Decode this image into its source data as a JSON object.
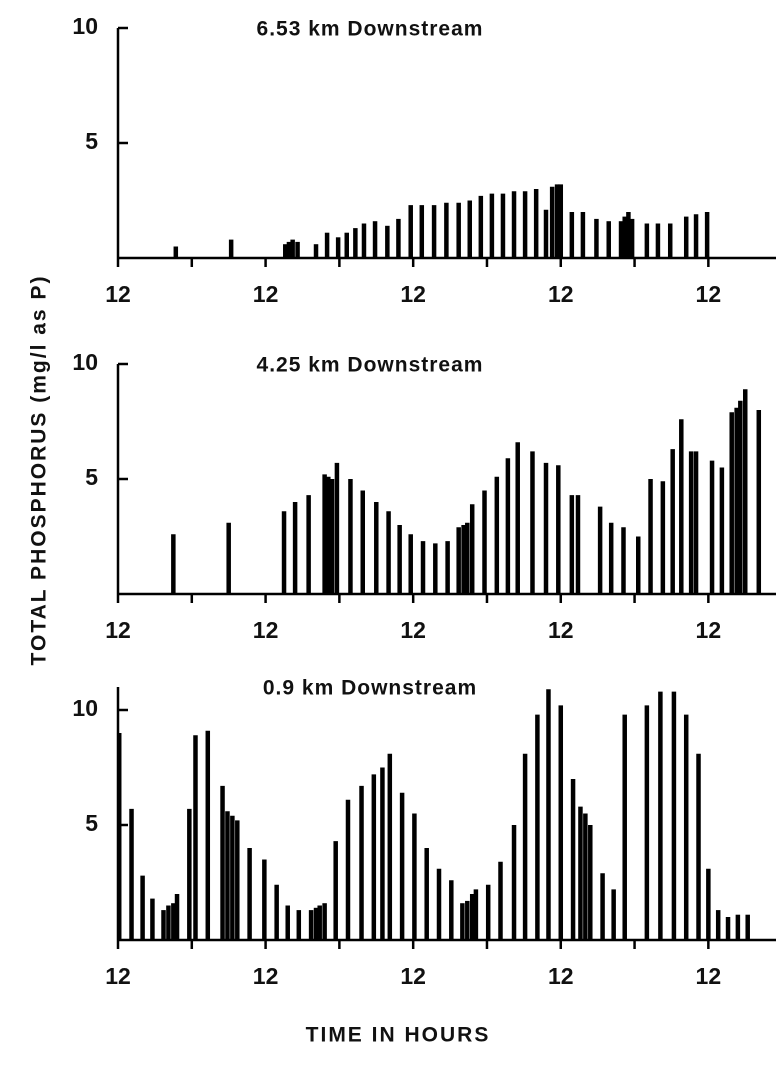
{
  "ylabel": "TOTAL PHOSPHORUS (mg/l as P)",
  "xlabel": "TIME IN HOURS",
  "chart_data": [
    {
      "type": "bar",
      "title": "6.53 km Downstream",
      "color": "#000000",
      "x": [
        4.7,
        9.2,
        13.6,
        13.9,
        14.2,
        14.6,
        16.1,
        17.0,
        17.9,
        18.6,
        19.3,
        20.0,
        20.9,
        21.9,
        22.8,
        23.8,
        24.7,
        25.7,
        26.7,
        27.7,
        28.6,
        29.5,
        30.4,
        31.3,
        32.2,
        33.1,
        34.0,
        34.8,
        35.3,
        35.7,
        36.0,
        36.9,
        37.8,
        38.9,
        39.9,
        40.9,
        41.2,
        41.5,
        41.8,
        43.0,
        43.9,
        44.9,
        46.2,
        47.0,
        47.9
      ],
      "values": [
        0.5,
        0.8,
        0.6,
        0.7,
        0.8,
        0.7,
        0.6,
        1.1,
        0.9,
        1.1,
        1.3,
        1.5,
        1.6,
        1.4,
        1.7,
        2.3,
        2.3,
        2.3,
        2.4,
        2.4,
        2.5,
        2.7,
        2.8,
        2.8,
        2.9,
        2.9,
        3.0,
        2.1,
        3.1,
        3.2,
        3.2,
        2.0,
        2.0,
        1.7,
        1.6,
        1.6,
        1.8,
        2.0,
        1.7,
        1.5,
        1.5,
        1.5,
        1.8,
        1.9,
        2.0
      ],
      "xlim": [
        0,
        53.5
      ],
      "ylim": [
        0,
        10
      ],
      "yticks": [
        5,
        10
      ],
      "xticks": [
        {
          "value": 0,
          "label": "12"
        },
        {
          "value": 12,
          "label": "12"
        },
        {
          "value": 24,
          "label": "12"
        },
        {
          "value": 36,
          "label": "12"
        },
        {
          "value": 48,
          "label": "12"
        }
      ],
      "xminorticks": [
        6,
        18,
        30,
        42
      ]
    },
    {
      "type": "bar",
      "title": "4.25 km Downstream",
      "color": "#000000",
      "x": [
        4.5,
        9.0,
        13.5,
        14.4,
        15.5,
        16.8,
        17.1,
        17.4,
        17.8,
        18.9,
        19.9,
        21.0,
        22.0,
        22.9,
        23.8,
        24.8,
        25.8,
        26.8,
        27.7,
        28.1,
        28.4,
        28.8,
        29.8,
        30.8,
        31.7,
        32.5,
        33.7,
        34.8,
        35.8,
        36.9,
        37.4,
        39.2,
        40.1,
        41.1,
        42.3,
        43.3,
        44.3,
        45.1,
        45.8,
        46.6,
        47.0,
        48.3,
        49.1,
        49.9,
        50.3,
        50.6,
        51.0,
        52.1
      ],
      "values": [
        2.6,
        3.1,
        3.6,
        4.0,
        4.3,
        5.2,
        5.1,
        5.0,
        5.7,
        5.0,
        4.5,
        4.0,
        3.6,
        3.0,
        2.6,
        2.3,
        2.2,
        2.3,
        2.9,
        3.0,
        3.1,
        3.9,
        4.5,
        5.1,
        5.9,
        6.6,
        6.2,
        5.7,
        5.6,
        4.3,
        4.3,
        3.8,
        3.1,
        2.9,
        2.5,
        5.0,
        4.9,
        6.3,
        7.6,
        6.2,
        6.2,
        5.8,
        5.5,
        7.9,
        8.1,
        8.4,
        8.9,
        8.0
      ],
      "xlim": [
        0,
        53.5
      ],
      "ylim": [
        0,
        10
      ],
      "yticks": [
        5,
        10
      ],
      "xticks": [
        {
          "value": 0,
          "label": "12"
        },
        {
          "value": 12,
          "label": "12"
        },
        {
          "value": 24,
          "label": "12"
        },
        {
          "value": 36,
          "label": "12"
        },
        {
          "value": 48,
          "label": "12"
        }
      ],
      "xminorticks": [
        6,
        18,
        30,
        42
      ]
    },
    {
      "type": "bar",
      "title": "0.9 km Downstream",
      "color": "#000000",
      "x": [
        0.1,
        1.1,
        2.0,
        2.8,
        3.7,
        4.1,
        4.5,
        4.8,
        5.8,
        6.3,
        7.3,
        8.5,
        8.9,
        9.3,
        9.7,
        10.7,
        11.9,
        12.9,
        13.8,
        14.7,
        15.7,
        16.1,
        16.4,
        16.8,
        17.7,
        18.7,
        19.8,
        20.8,
        21.5,
        22.1,
        23.1,
        24.1,
        25.1,
        26.1,
        27.1,
        28.0,
        28.4,
        28.8,
        29.1,
        30.1,
        31.1,
        32.2,
        33.1,
        34.1,
        35.0,
        36.0,
        37.0,
        37.6,
        38.0,
        38.4,
        39.4,
        40.3,
        41.2,
        43.0,
        44.1,
        45.2,
        46.2,
        47.2,
        48.0,
        48.8,
        49.6,
        50.4,
        51.2
      ],
      "values": [
        9.0,
        5.7,
        2.8,
        1.8,
        1.3,
        1.5,
        1.6,
        2.0,
        5.7,
        8.9,
        9.1,
        6.7,
        5.6,
        5.4,
        5.2,
        4.0,
        3.5,
        2.4,
        1.5,
        1.3,
        1.3,
        1.4,
        1.5,
        1.6,
        4.3,
        6.1,
        6.7,
        7.2,
        7.5,
        8.1,
        6.4,
        5.5,
        4.0,
        3.1,
        2.6,
        1.6,
        1.7,
        2.0,
        2.2,
        2.4,
        3.4,
        5.0,
        8.1,
        9.8,
        10.9,
        10.2,
        7.0,
        5.8,
        5.5,
        5.0,
        2.9,
        2.2,
        9.8,
        10.2,
        10.8,
        10.8,
        9.8,
        8.1,
        3.1,
        1.3,
        1.0,
        1.1,
        1.1
      ],
      "xlim": [
        0,
        53.5
      ],
      "ylim": [
        0,
        11
      ],
      "yticks": [
        5,
        10
      ],
      "xticks": [
        {
          "value": 0,
          "label": "12"
        },
        {
          "value": 12,
          "label": "12"
        },
        {
          "value": 24,
          "label": "12"
        },
        {
          "value": 36,
          "label": "12"
        },
        {
          "value": 48,
          "label": "12"
        }
      ],
      "xminorticks": [
        6,
        18,
        30,
        42
      ]
    }
  ]
}
